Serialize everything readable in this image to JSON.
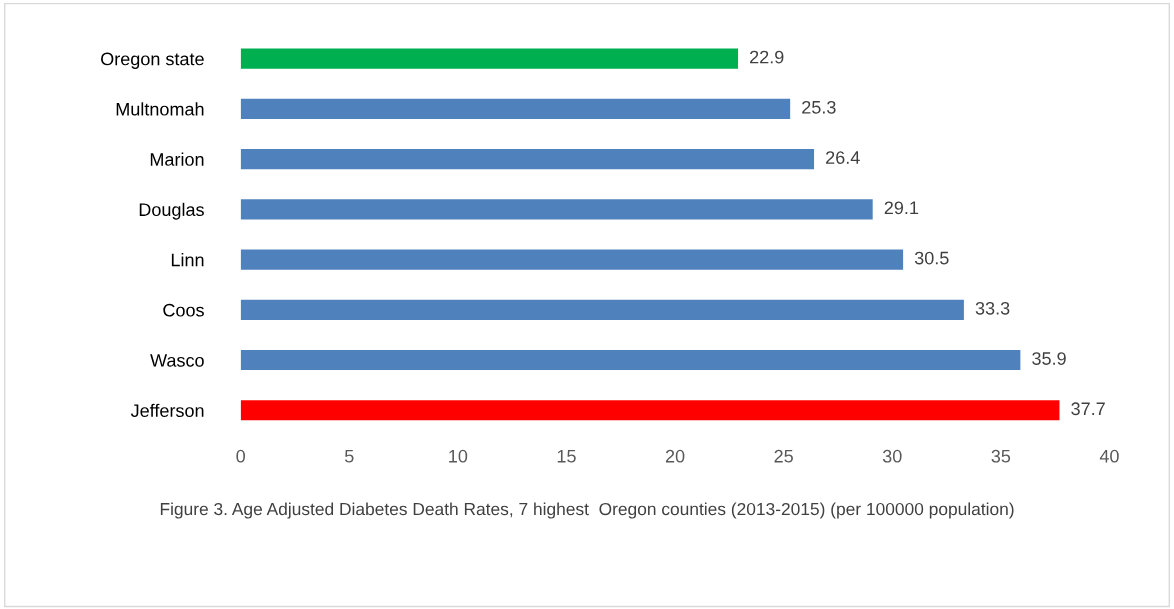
{
  "chart_data": {
    "type": "bar",
    "orientation": "horizontal",
    "categories": [
      "Oregon state",
      "Multnomah",
      "Marion",
      "Douglas",
      "Linn",
      "Coos",
      "Wasco",
      "Jefferson"
    ],
    "values": [
      22.9,
      25.3,
      26.4,
      29.1,
      30.5,
      33.3,
      35.9,
      37.7
    ],
    "colors": [
      "#00b050",
      "#4f81bd",
      "#4f81bd",
      "#4f81bd",
      "#4f81bd",
      "#4f81bd",
      "#4f81bd",
      "#ff0000"
    ],
    "xlim": [
      0,
      40
    ],
    "xticks": [
      0,
      5,
      10,
      15,
      20,
      25,
      30,
      35,
      40
    ],
    "data_labels": true,
    "grid": false,
    "legend": false,
    "annotations": [
      "Figure 3. Age Adjusted Diabetes Death Rates, 7 highest  Oregon counties (2013-2015) (per 100000 population)"
    ]
  }
}
